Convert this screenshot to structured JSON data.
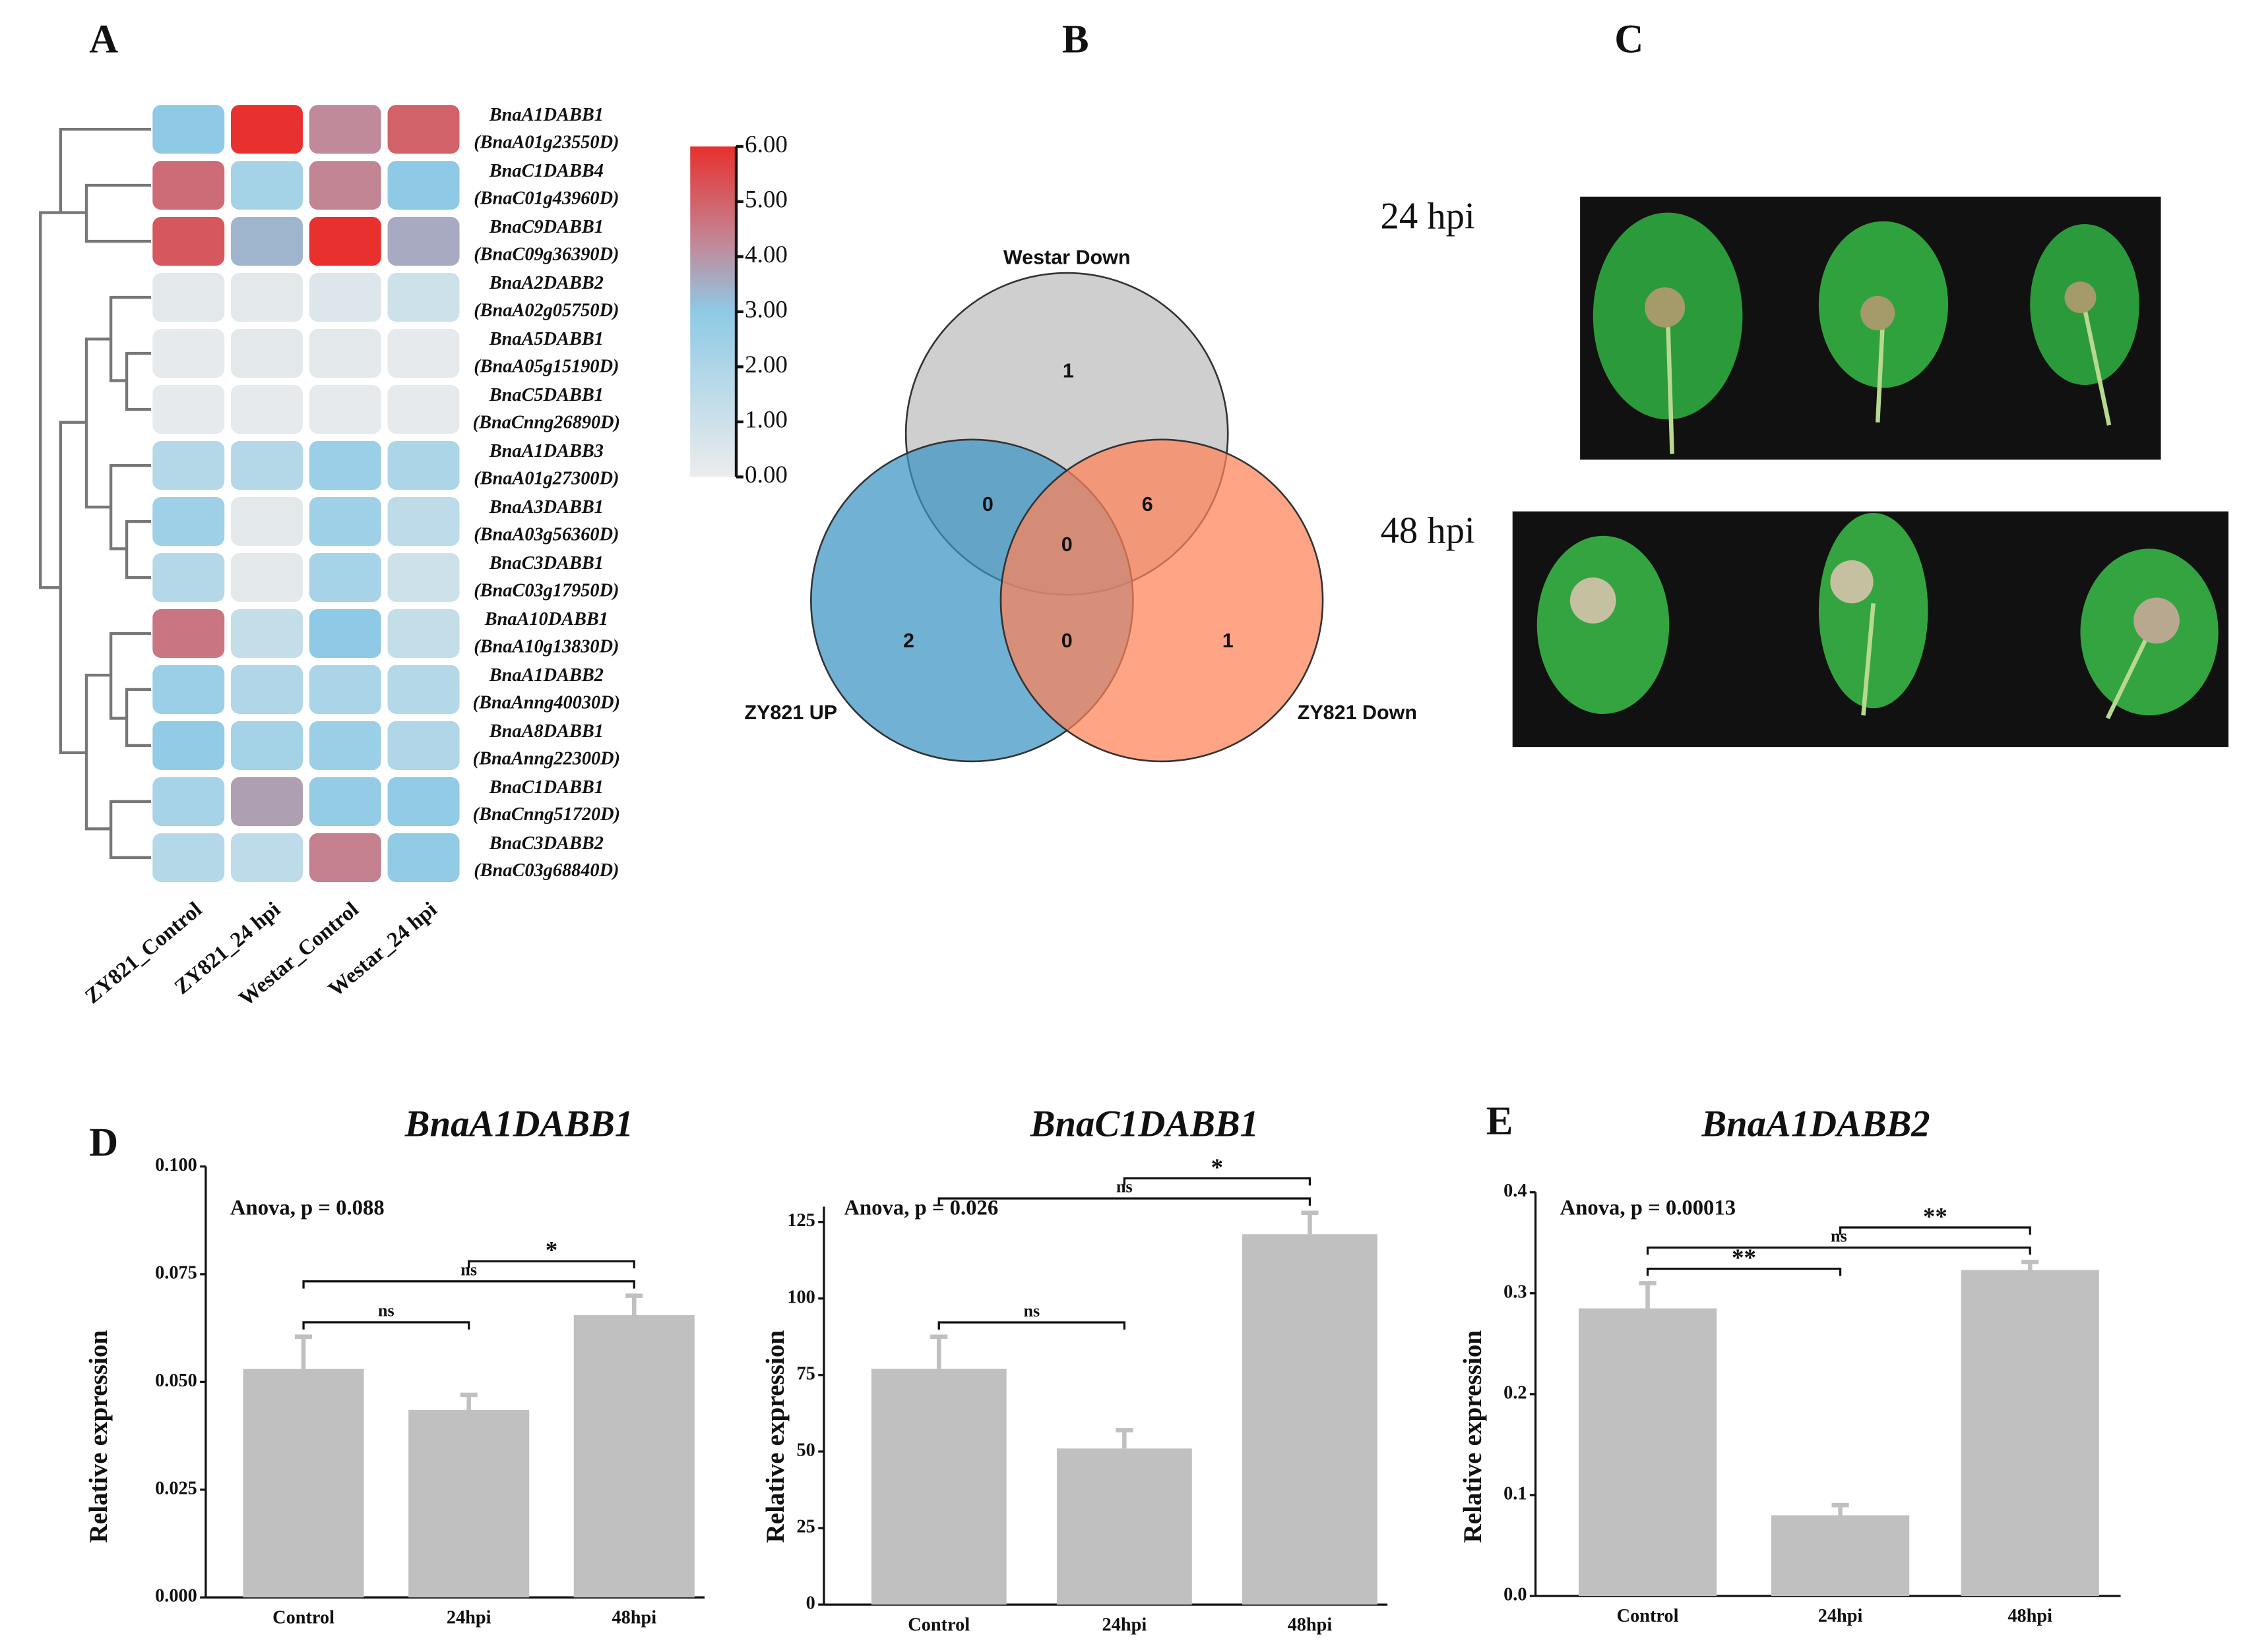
{
  "panels": {
    "labels": [
      "A",
      "B",
      "C",
      "D",
      "E"
    ]
  },
  "photos": {
    "labels": [
      "24 hpi",
      "48 hpi"
    ]
  },
  "chart_data": [
    {
      "type": "heatmap",
      "rows": [
        {
          "name": "BnaA1DABB1",
          "id": "(BnaA01g23550D)"
        },
        {
          "name": "BnaC1DABB4",
          "id": "(BnaC01g43960D)"
        },
        {
          "name": "BnaC9DABB1",
          "id": "(BnaC09g36390D)"
        },
        {
          "name": "BnaA2DABB2",
          "id": "(BnaA02g05750D)"
        },
        {
          "name": "BnaA5DABB1",
          "id": "(BnaA05g15190D)"
        },
        {
          "name": "BnaC5DABB1",
          "id": "(BnaCnng26890D)"
        },
        {
          "name": "BnaA1DABB3",
          "id": "(BnaA01g27300D)"
        },
        {
          "name": "BnaA3DABB1",
          "id": "(BnaA03g56360D)"
        },
        {
          "name": "BnaC3DABB1",
          "id": "(BnaC03g17950D)"
        },
        {
          "name": "BnaA10DABB1",
          "id": "(BnaA10g13830D)"
        },
        {
          "name": "BnaA1DABB2",
          "id": "(BnaAnng40030D)"
        },
        {
          "name": "BnaA8DABB1",
          "id": "(BnaAnng22300D)"
        },
        {
          "name": "BnaC1DABB1",
          "id": "(BnaCnng51720D)"
        },
        {
          "name": "BnaC3DABB2",
          "id": "(BnaC03g68840D)"
        }
      ],
      "columns": [
        "ZY821_Control",
        "ZY821_24 hpi",
        "Westar_Control",
        "Westar_24 hpi"
      ],
      "values": [
        [
          3.0,
          6.0,
          4.2,
          5.0
        ],
        [
          4.8,
          2.3,
          4.3,
          3.0
        ],
        [
          5.2,
          3.4,
          6.0,
          3.6
        ],
        [
          0.3,
          0.3,
          0.5,
          1.0
        ],
        [
          0.2,
          0.3,
          0.3,
          0.2
        ],
        [
          0.2,
          0.2,
          0.2,
          0.2
        ],
        [
          1.8,
          1.8,
          2.6,
          2.0
        ],
        [
          2.5,
          0.3,
          2.5,
          1.5
        ],
        [
          1.8,
          0.3,
          2.2,
          1.0
        ],
        [
          4.6,
          1.3,
          3.0,
          1.3
        ],
        [
          2.6,
          1.9,
          2.1,
          1.8
        ],
        [
          2.9,
          2.3,
          2.6,
          1.9
        ],
        [
          2.2,
          3.8,
          2.8,
          2.9
        ],
        [
          1.8,
          1.5,
          4.4,
          2.9
        ]
      ],
      "colorscale": [
        {
          "value": 0,
          "color": "#ececec"
        },
        {
          "value": 3,
          "color": "#8ecae6"
        },
        {
          "value": 4.2,
          "color": "#c08a9a"
        },
        {
          "value": 6,
          "color": "#e8302e"
        }
      ],
      "clim": [
        0,
        6
      ],
      "cticks": [
        {
          "value": 0,
          "label": "0.00"
        },
        {
          "value": 1,
          "label": "1.00"
        },
        {
          "value": 2,
          "label": "2.00"
        },
        {
          "value": 3,
          "label": "3.00"
        },
        {
          "value": 4,
          "label": "4.00"
        },
        {
          "value": 5,
          "label": "5.00"
        },
        {
          "value": 6,
          "label": "6.00"
        }
      ]
    },
    {
      "type": "venn",
      "sets": [
        {
          "name": "Westar Down",
          "color": "#bdbdbd"
        },
        {
          "name": "ZY821 UP",
          "color": "#3a93c3"
        },
        {
          "name": "ZY821 Down",
          "color": "#ff8257"
        }
      ],
      "regions": [
        {
          "sets": [
            0
          ],
          "value": 1
        },
        {
          "sets": [
            1
          ],
          "value": 2
        },
        {
          "sets": [
            2
          ],
          "value": 1
        },
        {
          "sets": [
            0,
            1
          ],
          "value": 0
        },
        {
          "sets": [
            0,
            2
          ],
          "value": 6
        },
        {
          "sets": [
            1,
            2
          ],
          "value": 0
        },
        {
          "sets": [
            0,
            1,
            2
          ],
          "value": 0
        }
      ]
    },
    {
      "type": "bar",
      "title": "BnaA1DABB1",
      "annotation": "Anova, p = 0.088",
      "ylabel": "Relative expression",
      "color": "#c0c0c0",
      "categories": [
        "Control",
        "24hpi",
        "48hpi"
      ],
      "values": [
        0.053,
        0.0435,
        0.0655
      ],
      "errors": [
        0.0075,
        0.0035,
        0.0045
      ],
      "ylim": [
        0,
        0.1
      ],
      "yticks": [
        {
          "value": 0,
          "label": "0.000"
        },
        {
          "value": 0.025,
          "label": "0.025"
        },
        {
          "value": 0.05,
          "label": "0.050"
        },
        {
          "value": 0.075,
          "label": "0.075"
        },
        {
          "value": 0.1,
          "label": "0.100"
        }
      ],
      "brackets": [
        {
          "from": 0,
          "to": 1,
          "label": "ns"
        },
        {
          "from": 0,
          "to": 2,
          "label": "ns"
        },
        {
          "from": 1,
          "to": 2,
          "label": "*"
        }
      ]
    },
    {
      "type": "bar",
      "title": "BnaC1DABB1",
      "annotation": "Anova, p = 0.026",
      "ylabel": "Relative expression",
      "color": "#c0c0c0",
      "categories": [
        "Control",
        "24hpi",
        "48hpi"
      ],
      "values": [
        77,
        51,
        121
      ],
      "errors": [
        10.5,
        6,
        7
      ],
      "ylim": [
        0,
        130
      ],
      "yticks": [
        0,
        25,
        50,
        75,
        100,
        125
      ],
      "brackets": [
        {
          "from": 0,
          "to": 1,
          "label": "ns"
        },
        {
          "from": 0,
          "to": 2,
          "label": "ns"
        },
        {
          "from": 1,
          "to": 2,
          "label": "*"
        }
      ]
    },
    {
      "type": "bar",
      "title": "BnaA1DABB2",
      "annotation": "Anova, p = 0.00013",
      "ylabel": "Relative expression",
      "color": "#c0c0c0",
      "categories": [
        "Control",
        "24hpi",
        "48hpi"
      ],
      "values": [
        0.285,
        0.08,
        0.323
      ],
      "errors": [
        0.025,
        0.01,
        0.008
      ],
      "ylim": [
        0,
        0.4
      ],
      "yticks": [
        {
          "value": 0,
          "label": "0.0"
        },
        0.1,
        0.2,
        0.3,
        0.4
      ],
      "brackets": [
        {
          "from": 0,
          "to": 1,
          "label": "**"
        },
        {
          "from": 0,
          "to": 2,
          "label": "ns"
        },
        {
          "from": 1,
          "to": 2,
          "label": "**"
        }
      ]
    }
  ]
}
